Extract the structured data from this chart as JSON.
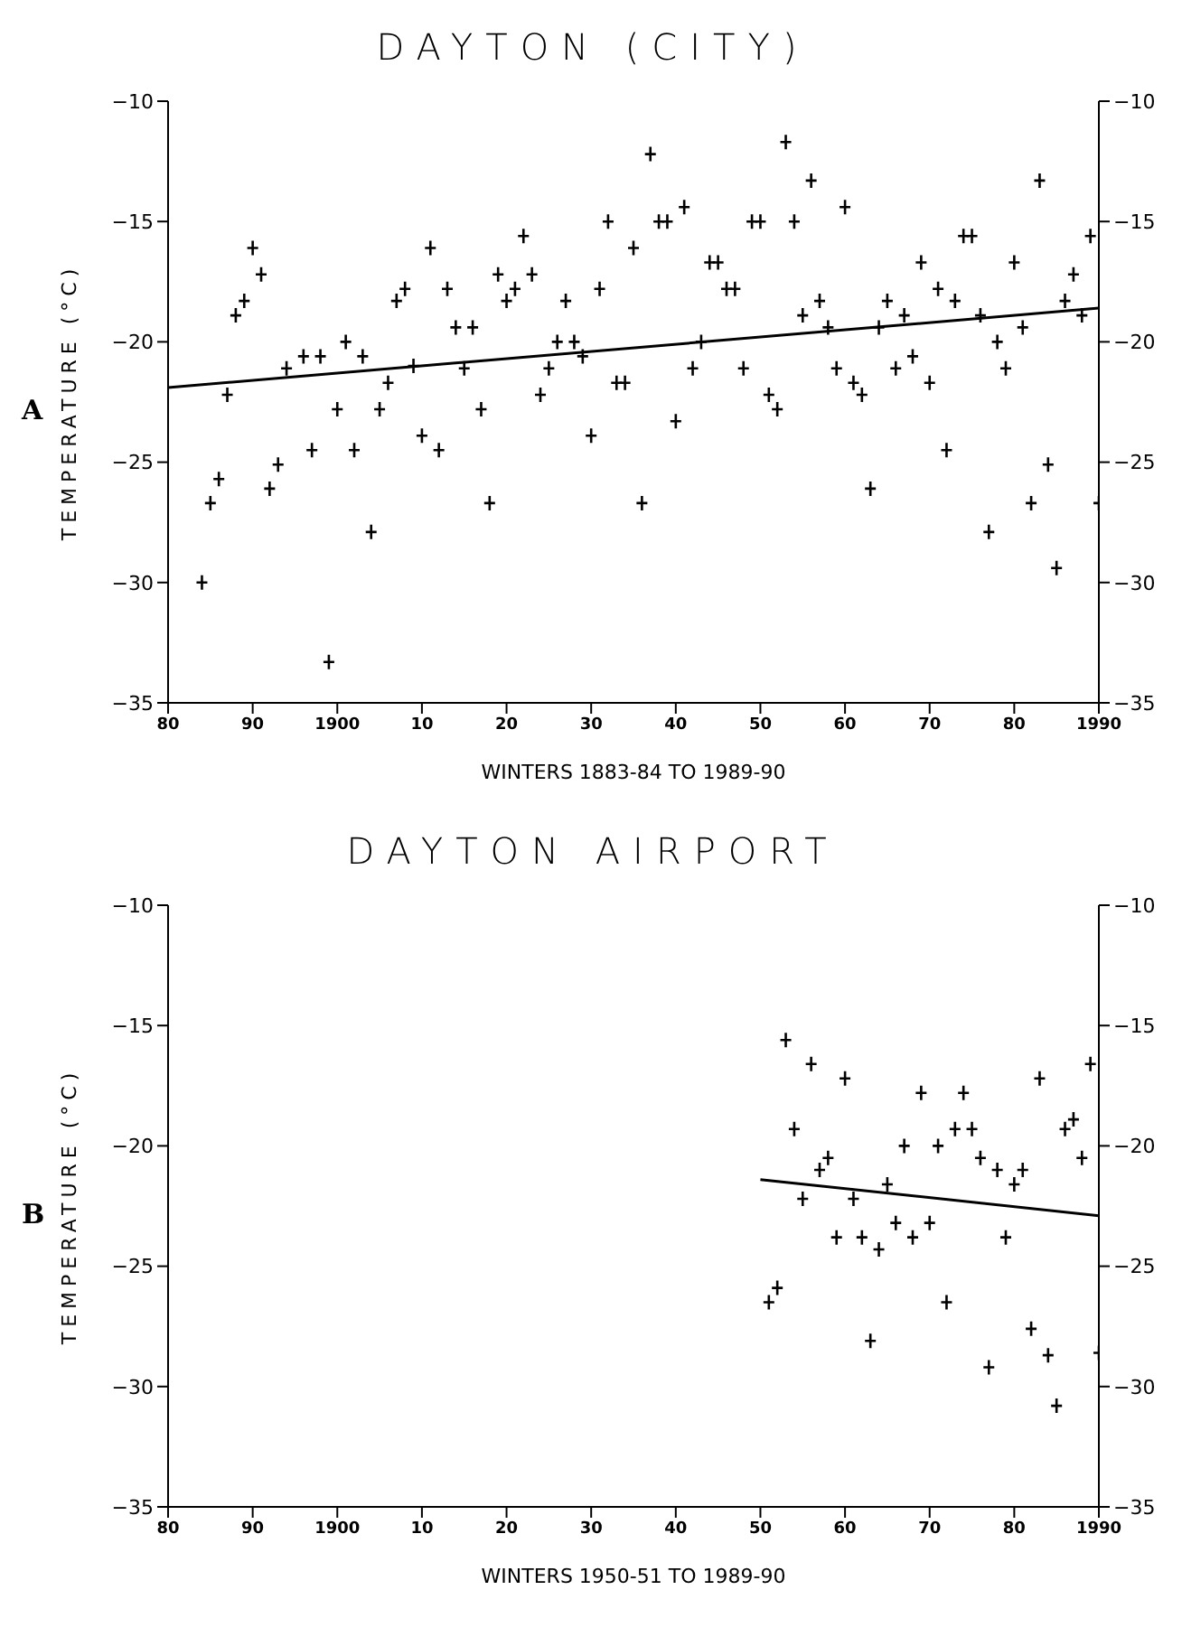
{
  "chart_data": [
    {
      "type": "scatter",
      "title": "DAYTON (CITY)",
      "xlabel": "WINTERS 1883-84 TO 1989-90",
      "ylabel": "TEMPERATURE (°C)",
      "annotations": [
        "A"
      ],
      "marker": "cross",
      "grid": false,
      "xlim": [
        1880,
        1990
      ],
      "xticks": [
        {
          "value": 1880,
          "label": "80"
        },
        {
          "value": 1890,
          "label": "90"
        },
        {
          "value": 1900,
          "label": "1900"
        },
        {
          "value": 1910,
          "label": "10"
        },
        {
          "value": 1920,
          "label": "20"
        },
        {
          "value": 1930,
          "label": "30"
        },
        {
          "value": 1940,
          "label": "40"
        },
        {
          "value": 1950,
          "label": "50"
        },
        {
          "value": 1960,
          "label": "60"
        },
        {
          "value": 1970,
          "label": "70"
        },
        {
          "value": 1980,
          "label": "80"
        },
        {
          "value": 1990,
          "label": "1990"
        }
      ],
      "ylim": [
        -35,
        -10
      ],
      "yticks": [
        -35,
        -30,
        -25,
        -20,
        -15,
        -10
      ],
      "y2lim": [
        -35,
        -10
      ],
      "y2ticks": [
        -35,
        -30,
        -25,
        -20,
        -15,
        -10
      ],
      "series": [
        {
          "color": "#000000",
          "x": [
            1884,
            1885,
            1886,
            1887,
            1888,
            1889,
            1890,
            1891,
            1892,
            1893,
            1894,
            1896,
            1897,
            1898,
            1899,
            1900,
            1901,
            1902,
            1903,
            1904,
            1905,
            1906,
            1907,
            1908,
            1909,
            1910,
            1911,
            1912,
            1913,
            1914,
            1915,
            1916,
            1917,
            1918,
            1919,
            1920,
            1921,
            1922,
            1923,
            1924,
            1925,
            1926,
            1927,
            1928,
            1929,
            1930,
            1931,
            1932,
            1933,
            1934,
            1935,
            1936,
            1937,
            1938,
            1939,
            1940,
            1941,
            1942,
            1943,
            1944,
            1945,
            1946,
            1947,
            1948,
            1949,
            1950,
            1951,
            1952,
            1953,
            1954,
            1955,
            1956,
            1957,
            1958,
            1959,
            1960,
            1961,
            1962,
            1963,
            1964,
            1965,
            1966,
            1967,
            1968,
            1969,
            1970,
            1971,
            1972,
            1973,
            1974,
            1975,
            1976,
            1977,
            1978,
            1979,
            1980,
            1981,
            1982,
            1983,
            1984,
            1985,
            1986,
            1987,
            1988,
            1989,
            1990
          ],
          "values": [
            -30.0,
            -26.7,
            -25.7,
            -22.2,
            -18.9,
            -18.3,
            -16.1,
            -17.2,
            -26.1,
            -25.1,
            -21.1,
            -20.6,
            -24.5,
            -20.6,
            -33.3,
            -22.8,
            -20.0,
            -24.5,
            -20.6,
            -27.9,
            -22.8,
            -21.7,
            -18.3,
            -17.8,
            -21.0,
            -23.9,
            -16.1,
            -24.5,
            -17.8,
            -19.4,
            -21.1,
            -19.4,
            -22.8,
            -26.7,
            -17.2,
            -18.3,
            -17.8,
            -15.6,
            -17.2,
            -22.2,
            -21.1,
            -20.0,
            -18.3,
            -20.0,
            -20.6,
            -23.9,
            -17.8,
            -15.0,
            -21.7,
            -21.7,
            -16.1,
            -26.7,
            -12.2,
            -15.0,
            -15.0,
            -23.3,
            -14.4,
            -21.1,
            -20.0,
            -16.7,
            -16.7,
            -17.8,
            -17.8,
            -21.1,
            -15.0,
            -15.0,
            -22.2,
            -22.8,
            -11.7,
            -15.0,
            -18.9,
            -13.3,
            -18.3,
            -19.4,
            -21.1,
            -14.4,
            -21.7,
            -22.2,
            -26.1,
            -19.4,
            -18.3,
            -21.1,
            -18.9,
            -20.6,
            -16.7,
            -21.7,
            -17.8,
            -24.5,
            -18.3,
            -15.6,
            -15.6,
            -18.9,
            -27.9,
            -20.0,
            -21.1,
            -16.7,
            -19.4,
            -26.7,
            -13.3,
            -25.1,
            -29.4,
            -18.3,
            -17.2,
            -18.9,
            -15.6,
            -26.7
          ]
        },
        {
          "type": "line",
          "color": "#000000",
          "marker": "none",
          "line_style": "solid",
          "x": [
            1880,
            1990
          ],
          "values": [
            -21.9,
            -18.6
          ]
        }
      ]
    },
    {
      "type": "scatter",
      "title": "DAYTON AIRPORT",
      "xlabel": "WINTERS 1950-51 TO 1989-90",
      "ylabel": "TEMPERATURE (°C)",
      "annotations": [
        "B"
      ],
      "marker": "cross",
      "grid": false,
      "xlim": [
        1880,
        1990
      ],
      "xticks": [
        {
          "value": 1880,
          "label": "80"
        },
        {
          "value": 1890,
          "label": "90"
        },
        {
          "value": 1900,
          "label": "1900"
        },
        {
          "value": 1910,
          "label": "10"
        },
        {
          "value": 1920,
          "label": "20"
        },
        {
          "value": 1930,
          "label": "30"
        },
        {
          "value": 1940,
          "label": "40"
        },
        {
          "value": 1950,
          "label": "50"
        },
        {
          "value": 1960,
          "label": "60"
        },
        {
          "value": 1970,
          "label": "70"
        },
        {
          "value": 1980,
          "label": "80"
        },
        {
          "value": 1990,
          "label": "1990"
        }
      ],
      "ylim": [
        -35,
        -10
      ],
      "yticks": [
        -35,
        -30,
        -25,
        -20,
        -15,
        -10
      ],
      "y2lim": [
        -35,
        -10
      ],
      "y2ticks": [
        -35,
        -30,
        -25,
        -20,
        -15,
        -10
      ],
      "series": [
        {
          "color": "#000000",
          "x": [
            1951,
            1952,
            1953,
            1954,
            1955,
            1956,
            1957,
            1958,
            1959,
            1960,
            1961,
            1962,
            1963,
            1964,
            1965,
            1966,
            1967,
            1968,
            1969,
            1970,
            1971,
            1972,
            1973,
            1974,
            1975,
            1976,
            1977,
            1978,
            1979,
            1980,
            1981,
            1982,
            1983,
            1984,
            1985,
            1986,
            1987,
            1988,
            1989,
            1990
          ],
          "values": [
            -26.5,
            -25.9,
            -15.6,
            -19.3,
            -22.2,
            -16.6,
            -21.0,
            -20.5,
            -23.8,
            -17.2,
            -22.2,
            -23.8,
            -28.1,
            -24.3,
            -21.6,
            -23.2,
            -20.0,
            -23.8,
            -17.8,
            -23.2,
            -20.0,
            -26.5,
            -19.3,
            -17.8,
            -19.3,
            -20.5,
            -29.2,
            -21.0,
            -23.8,
            -21.6,
            -21.0,
            -27.6,
            -17.2,
            -28.7,
            -30.8,
            -19.3,
            -18.9,
            -20.5,
            -16.6,
            -28.6
          ]
        },
        {
          "type": "line",
          "color": "#000000",
          "marker": "none",
          "line_style": "solid",
          "x": [
            1950,
            1990
          ],
          "values": [
            -21.4,
            -22.9
          ]
        }
      ]
    }
  ]
}
